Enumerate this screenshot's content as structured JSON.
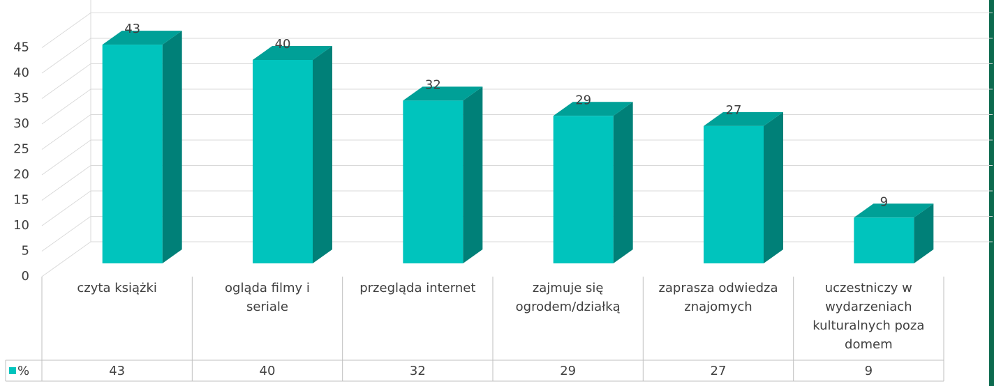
{
  "chart_data": {
    "type": "bar3d",
    "categories": [
      "czyta książki",
      "ogląda filmy i seriale",
      "przegląda internet",
      "zajmuje się ogrodem/działką",
      "zaprasza odwiedza znajomych",
      "uczestniczy w wydarzeniach kulturalnych poza domem"
    ],
    "series": [
      {
        "name": "%",
        "color": "#00c4bd",
        "values": [
          43,
          40,
          32,
          29,
          27,
          9
        ]
      }
    ],
    "ylim": [
      0,
      45
    ],
    "yticks": [
      0,
      5,
      10,
      15,
      20,
      25,
      30,
      35,
      40,
      45
    ],
    "grid": true,
    "data_table": true
  }
}
